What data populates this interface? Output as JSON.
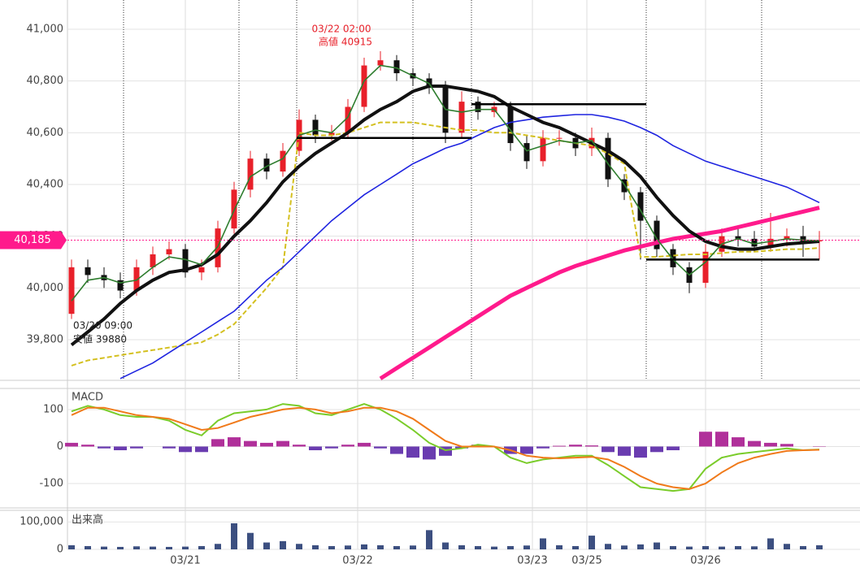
{
  "chart_data": [
    {
      "type": "candlestick",
      "xlim": [
        -0.25,
        48.5
      ],
      "xticks": [
        {
          "value": 7,
          "label": "03/21"
        },
        {
          "value": 17.6,
          "label": "03/22"
        },
        {
          "value": 28.35,
          "label": "03/23"
        },
        {
          "value": 31.7,
          "label": "03/25"
        },
        {
          "value": 39,
          "label": "03/26"
        }
      ],
      "ylim": [
        39643,
        41113
      ],
      "yticks": [
        {
          "value": 39800,
          "label": "39,800"
        },
        {
          "value": 40000,
          "label": "40,000"
        },
        {
          "value": 40200,
          "label": "40,200"
        },
        {
          "value": 40400,
          "label": "40,400"
        },
        {
          "value": 40600,
          "label": "40,600"
        },
        {
          "value": 40800,
          "label": "40,800"
        },
        {
          "value": 41000,
          "label": "41,000"
        }
      ],
      "up_color": "#e8202a",
      "down_color": "#111111",
      "open": [
        39900,
        40080,
        40050,
        40030,
        39990,
        40080,
        40130,
        40150,
        40060,
        40080,
        40230,
        40380,
        40500,
        40450,
        40530,
        40650,
        40590,
        40600,
        40700,
        40860,
        40880,
        40830,
        40810,
        40780,
        40600,
        40720,
        40680,
        40700,
        40560,
        40490,
        40580,
        40580,
        40540,
        40580,
        40420,
        40370,
        40260,
        40150,
        40080,
        40020,
        40140,
        40200,
        40190,
        40160,
        40190,
        40200,
        40180
      ],
      "high": [
        40110,
        40110,
        40080,
        40060,
        40110,
        40160,
        40180,
        40170,
        40110,
        40260,
        40410,
        40530,
        40520,
        40560,
        40690,
        40670,
        40630,
        40730,
        40890,
        40915,
        40900,
        40850,
        40830,
        40800,
        40760,
        40740,
        40720,
        40720,
        40590,
        40610,
        40610,
        40600,
        40620,
        40600,
        40440,
        40390,
        40280,
        40170,
        40100,
        40170,
        40230,
        40230,
        40220,
        40290,
        40230,
        40240,
        40220
      ],
      "low": [
        39880,
        40020,
        40000,
        39960,
        39970,
        40050,
        40110,
        40040,
        40030,
        40060,
        40210,
        40350,
        40420,
        40430,
        40510,
        40560,
        40570,
        40580,
        40680,
        40840,
        40800,
        40780,
        40750,
        40560,
        40580,
        40650,
        40660,
        40530,
        40460,
        40470,
        40550,
        40510,
        40510,
        40390,
        40340,
        40110,
        40120,
        40050,
        39980,
        40000,
        40120,
        40160,
        40140,
        40140,
        40160,
        40120,
        40110
      ],
      "close": [
        40080,
        40050,
        40030,
        39990,
        40080,
        40130,
        40150,
        40060,
        40080,
        40230,
        40380,
        40500,
        40450,
        40530,
        40650,
        40590,
        40600,
        40700,
        40860,
        40880,
        40830,
        40810,
        40780,
        40600,
        40720,
        40680,
        40700,
        40560,
        40490,
        40580,
        40580,
        40540,
        40580,
        40420,
        40370,
        40260,
        40150,
        40080,
        40020,
        40140,
        40200,
        40190,
        40160,
        40190,
        40200,
        40180,
        40185
      ],
      "series": [
        {
          "color": "#d4c020",
          "style": "dashed",
          "width": 2,
          "values": [
            39700,
            39720,
            39730,
            39740,
            39750,
            39760,
            39770,
            39780,
            39790,
            39820,
            39860,
            39930,
            40000,
            40080,
            40600,
            40590,
            40590,
            40600,
            40620,
            40640,
            40640,
            40640,
            40630,
            40620,
            40610,
            40610,
            40600,
            40600,
            40590,
            40580,
            40570,
            40560,
            40550,
            40520,
            40480,
            40120,
            40120,
            40125,
            40130,
            40130,
            40135,
            40140,
            40140,
            40145,
            40150,
            40150,
            40155
          ]
        },
        {
          "color": "#ff1a8c",
          "style": "solid",
          "width": 5,
          "values": [
            null,
            null,
            null,
            null,
            null,
            null,
            null,
            null,
            null,
            null,
            null,
            null,
            null,
            null,
            null,
            null,
            null,
            null,
            null,
            39650,
            39690,
            39730,
            39770,
            39810,
            39850,
            39890,
            39930,
            39970,
            40000,
            40030,
            40060,
            40085,
            40105,
            40125,
            40145,
            40160,
            40175,
            40190,
            40200,
            40210,
            40220,
            40235,
            40250,
            40265,
            40280,
            40295,
            40310
          ]
        },
        {
          "color": "#1f24e0",
          "style": "solid",
          "width": 1.6,
          "values": [
            null,
            null,
            null,
            39650,
            39680,
            39710,
            39750,
            39790,
            39830,
            39870,
            39910,
            39970,
            40030,
            40080,
            40140,
            40200,
            40260,
            40310,
            40360,
            40400,
            40440,
            40480,
            40510,
            40540,
            40560,
            40590,
            40620,
            40640,
            40650,
            40660,
            40665,
            40670,
            40670,
            40660,
            40645,
            40620,
            40590,
            40550,
            40520,
            40490,
            40470,
            40450,
            40430,
            40410,
            40390,
            40360,
            40330
          ]
        },
        {
          "color": "#111111",
          "style": "solid",
          "width": 4,
          "values": [
            39780,
            39830,
            39880,
            39940,
            39990,
            40030,
            40060,
            40070,
            40090,
            40130,
            40200,
            40260,
            40330,
            40410,
            40470,
            40520,
            40560,
            40600,
            40650,
            40690,
            40720,
            40760,
            40780,
            40780,
            40770,
            40760,
            40740,
            40700,
            40670,
            40640,
            40620,
            40590,
            40560,
            40530,
            40490,
            40430,
            40350,
            40280,
            40220,
            40180,
            40160,
            40150,
            40150,
            40160,
            40170,
            40175,
            40180
          ]
        },
        {
          "color": "#2e7d2e",
          "style": "solid",
          "width": 1.6,
          "values": [
            39950,
            40030,
            40040,
            40020,
            40030,
            40080,
            40120,
            40110,
            40090,
            40160,
            40300,
            40430,
            40470,
            40500,
            40590,
            40610,
            40600,
            40660,
            40800,
            40860,
            40850,
            40820,
            40790,
            40690,
            40680,
            40690,
            40690,
            40610,
            40530,
            40550,
            40570,
            40560,
            40570,
            40480,
            40400,
            40300,
            40190,
            40110,
            40050,
            40100,
            40170,
            40190,
            40170,
            40180,
            40190,
            40185,
            40183
          ]
        }
      ],
      "levels": [
        40580,
        40710,
        40110
      ],
      "current_price": {
        "value": 40185,
        "label": "40,185"
      },
      "annotations": [
        "03/22 02:00",
        "高値 40915",
        "03/20 09:00",
        "安値 39880"
      ]
    },
    {
      "type": "macd",
      "title": "MACD",
      "ylim": [
        -166,
        157
      ],
      "yticks": [
        -100,
        0,
        100
      ],
      "series": [
        {
          "color": "#7acc2a",
          "values": [
            95,
            110,
            100,
            85,
            80,
            80,
            70,
            45,
            30,
            70,
            90,
            95,
            100,
            115,
            110,
            90,
            85,
            100,
            115,
            100,
            75,
            45,
            10,
            -10,
            -5,
            5,
            0,
            -30,
            -45,
            -35,
            -30,
            -25,
            -25,
            -50,
            -80,
            -110,
            -115,
            -120,
            -115,
            -60,
            -30,
            -20,
            -15,
            -10,
            -5,
            -10,
            -8
          ]
        },
        {
          "color": "#f07a1a",
          "values": [
            85,
            105,
            105,
            95,
            85,
            80,
            75,
            60,
            45,
            50,
            65,
            80,
            90,
            100,
            105,
            100,
            90,
            95,
            105,
            105,
            95,
            75,
            45,
            15,
            0,
            0,
            0,
            -10,
            -25,
            -30,
            -32,
            -30,
            -28,
            -35,
            -55,
            -80,
            -100,
            -110,
            -115,
            -100,
            -70,
            -45,
            -30,
            -20,
            -12,
            -10,
            -9
          ]
        }
      ],
      "histogram": {
        "pos_color": "#b0309a",
        "neg_color": "#6a3cb0",
        "values": [
          10,
          5,
          -5,
          -10,
          -5,
          0,
          -5,
          -15,
          -15,
          20,
          25,
          15,
          10,
          15,
          5,
          -10,
          -5,
          5,
          10,
          -5,
          -20,
          -30,
          -35,
          -25,
          -5,
          5,
          0,
          -20,
          -20,
          -5,
          2,
          5,
          3,
          -15,
          -25,
          -30,
          -15,
          -10,
          0,
          40,
          40,
          25,
          15,
          10,
          7,
          0,
          1
        ]
      }
    },
    {
      "type": "bar",
      "title": "出来高",
      "color": "#3c4f80",
      "ylim": [
        0,
        142000
      ],
      "yticks": [
        0,
        {
          "value": 100000,
          "label": "100,000"
        }
      ],
      "values": [
        15000,
        12000,
        10000,
        9000,
        11000,
        10000,
        9000,
        10000,
        12000,
        20000,
        95000,
        60000,
        25000,
        30000,
        20000,
        15000,
        12000,
        14000,
        18000,
        15000,
        12000,
        14000,
        70000,
        25000,
        15000,
        12000,
        10000,
        12000,
        14000,
        40000,
        15000,
        12000,
        50000,
        20000,
        14000,
        18000,
        25000,
        12000,
        10000,
        12000,
        10000,
        12000,
        11000,
        40000,
        20000,
        12000,
        15000
      ]
    }
  ]
}
